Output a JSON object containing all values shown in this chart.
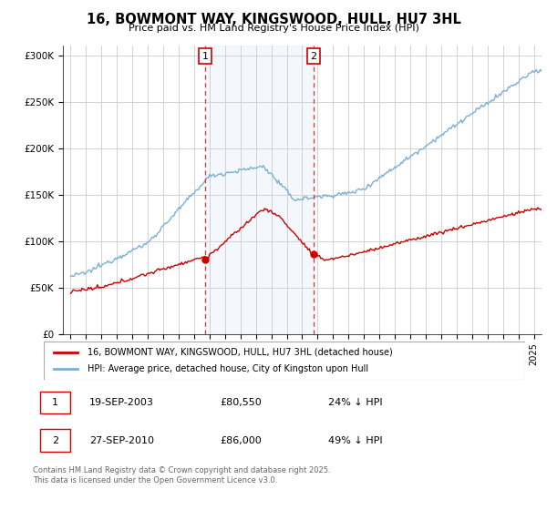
{
  "title": "16, BOWMONT WAY, KINGSWOOD, HULL, HU7 3HL",
  "subtitle": "Price paid vs. HM Land Registry's House Price Index (HPI)",
  "ylabel_ticks": [
    "£0",
    "£50K",
    "£100K",
    "£150K",
    "£200K",
    "£250K",
    "£300K"
  ],
  "ytick_values": [
    0,
    50000,
    100000,
    150000,
    200000,
    250000,
    300000
  ],
  "ylim": [
    0,
    310000
  ],
  "xlim_start": 1994.5,
  "xlim_end": 2025.5,
  "hpi_color": "#7ab0d4",
  "price_color": "#cc0000",
  "marker1_date": 2003.72,
  "marker2_date": 2010.74,
  "marker1_price": 80550,
  "marker2_price": 86000,
  "legend_label1": "16, BOWMONT WAY, KINGSWOOD, HULL, HU7 3HL (detached house)",
  "legend_label2": "HPI: Average price, detached house, City of Kingston upon Hull",
  "table_row1": [
    "1",
    "19-SEP-2003",
    "£80,550",
    "24% ↓ HPI"
  ],
  "table_row2": [
    "2",
    "27-SEP-2010",
    "£86,000",
    "49% ↓ HPI"
  ],
  "footnote": "Contains HM Land Registry data © Crown copyright and database right 2025.\nThis data is licensed under the Open Government Licence v3.0.",
  "bg_color": "#ffffff",
  "plot_bg": "#ffffff",
  "grid_color": "#cccccc",
  "shaded_region1_start": 2003.72,
  "shaded_region1_end": 2010.74
}
